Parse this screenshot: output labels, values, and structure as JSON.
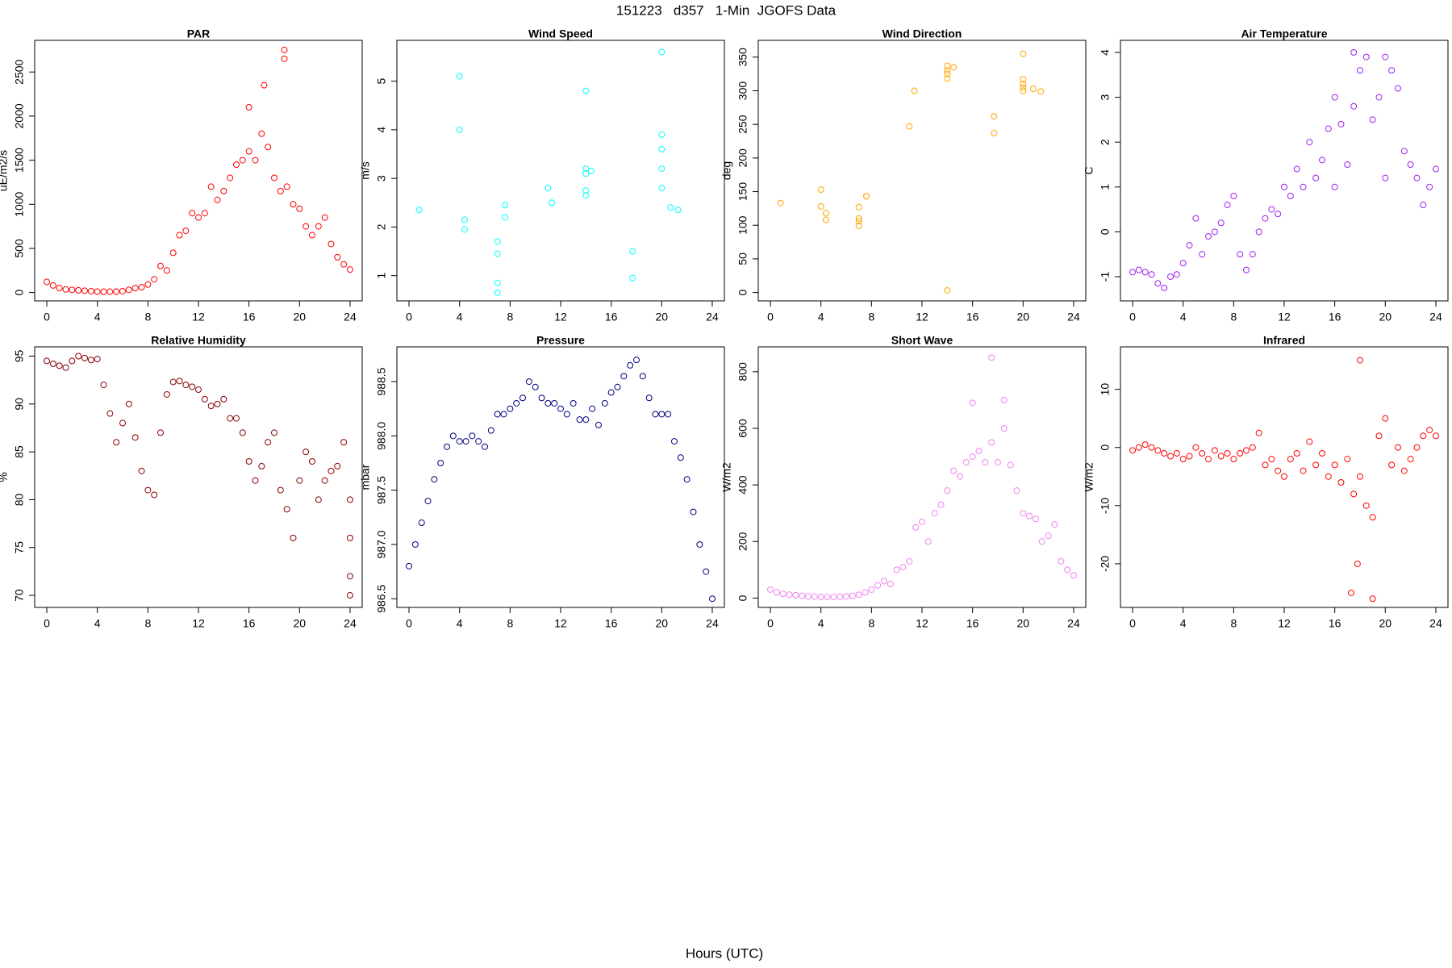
{
  "title": "151223   d357   1-Min  JGOFS Data",
  "x_label": "Hours (UTC)",
  "chart_data": [
    {
      "type": "scatter",
      "title": "PAR",
      "y_label": "uE/m2/s",
      "color": "#ff0000",
      "x": [
        0,
        0.5,
        1,
        1.5,
        2,
        2.5,
        3,
        3.5,
        4,
        4.5,
        5,
        5.5,
        6,
        6.5,
        7,
        7.5,
        8,
        8.5,
        9,
        9.5,
        10,
        10.5,
        11,
        11.5,
        12,
        12.5,
        13,
        13.5,
        14,
        14.5,
        15,
        15.5,
        16,
        16.5,
        17,
        17.5,
        18,
        18.5,
        19,
        19.5,
        20,
        20.5,
        21,
        21.5,
        22,
        22.5,
        23,
        23.5,
        24,
        16,
        17.2,
        18.8,
        18.8
      ],
      "values": [
        120,
        80,
        50,
        35,
        30,
        25,
        20,
        15,
        10,
        10,
        10,
        10,
        15,
        30,
        50,
        60,
        90,
        150,
        300,
        250,
        450,
        650,
        700,
        900,
        850,
        900,
        1200,
        1050,
        1150,
        1300,
        1450,
        1500,
        1600,
        1500,
        1800,
        1650,
        1300,
        1150,
        1200,
        1000,
        950,
        750,
        650,
        750,
        850,
        550,
        400,
        320,
        260,
        2100,
        2350,
        2750,
        2650
      ],
      "xlim": [
        -0.96,
        24.96
      ],
      "xticks": [
        0,
        4,
        8,
        12,
        16,
        20,
        24
      ],
      "ylim": [
        -95,
        2859
      ],
      "yticks": [
        0,
        500,
        1000,
        1500,
        2000,
        2500
      ]
    },
    {
      "type": "scatter",
      "title": "Wind Speed",
      "y_label": "m/s",
      "color": "#00ffff",
      "x": [
        0.8,
        4,
        4,
        4.4,
        4.4,
        7,
        7,
        7,
        7,
        7.6,
        7.6,
        11,
        11.3,
        14,
        14,
        14,
        14,
        14,
        14.4,
        17.7,
        17.7,
        20,
        20,
        20,
        20,
        20,
        20.7,
        21.3
      ],
      "values": [
        2.35,
        5.1,
        4,
        2.15,
        1.95,
        1.7,
        1.45,
        0.85,
        0.65,
        2.45,
        2.2,
        2.8,
        2.5,
        4.8,
        3.2,
        3.1,
        2.75,
        2.65,
        3.15,
        1.5,
        0.95,
        5.6,
        3.9,
        3.6,
        3.2,
        2.8,
        2.4,
        2.35
      ],
      "xlim": [
        -0.96,
        24.96
      ],
      "xticks": [
        0,
        4,
        8,
        12,
        16,
        20,
        24
      ],
      "ylim": [
        0.48,
        5.84
      ],
      "yticks": [
        1,
        2,
        3,
        4,
        5
      ]
    },
    {
      "type": "scatter",
      "title": "Wind Direction",
      "y_label": "deg",
      "color": "#ffa500",
      "x": [
        0.8,
        4,
        4,
        4.4,
        4.4,
        7,
        7,
        7,
        7,
        7.6,
        7.6,
        11,
        11.4,
        14,
        14,
        14,
        14,
        14,
        14.5,
        17.7,
        17.7,
        20,
        20,
        20,
        20,
        20,
        20.8,
        21.4
      ],
      "values": [
        133,
        153,
        128,
        118,
        108,
        127,
        110,
        106,
        99,
        143,
        143,
        247,
        300,
        337,
        330,
        325,
        318,
        3,
        335,
        262,
        237,
        355,
        317,
        310,
        305,
        300,
        303,
        299
      ],
      "xlim": [
        -0.96,
        24.96
      ],
      "xticks": [
        0,
        4,
        8,
        12,
        16,
        20,
        24
      ],
      "ylim": [
        -12.5,
        375
      ],
      "yticks": [
        0,
        50,
        100,
        150,
        200,
        250,
        300,
        350
      ]
    },
    {
      "type": "scatter",
      "title": "Air Temperature",
      "y_label": "C",
      "color": "#a020f0",
      "x": [
        0,
        0.5,
        1,
        1.5,
        2,
        2.5,
        3,
        3.5,
        4,
        4.5,
        5,
        5.5,
        6,
        6.5,
        7,
        7.5,
        8,
        8.5,
        9,
        9.5,
        10,
        10.5,
        11,
        11.5,
        12,
        12.5,
        13,
        13.5,
        14,
        14.5,
        15,
        15.5,
        16,
        16.5,
        17,
        17.5,
        18,
        18.5,
        19,
        19.5,
        20,
        20.5,
        21,
        21.5,
        22,
        22.5,
        23,
        23.5,
        24,
        17.5,
        20,
        16
      ],
      "values": [
        -0.9,
        -0.85,
        -0.9,
        -0.95,
        -1.15,
        -1.25,
        -1.0,
        -0.95,
        -0.7,
        -0.3,
        0.3,
        -0.5,
        -0.1,
        0.0,
        0.2,
        0.6,
        0.8,
        -0.5,
        -0.85,
        -0.5,
        0.0,
        0.3,
        0.5,
        0.4,
        1.0,
        0.8,
        1.4,
        1.0,
        2.0,
        1.2,
        1.6,
        2.3,
        3.0,
        2.4,
        1.5,
        2.8,
        3.6,
        3.9,
        2.5,
        3.0,
        1.2,
        3.6,
        3.2,
        1.8,
        1.5,
        1.2,
        0.6,
        1.0,
        1.4,
        4.0,
        3.9,
        1.0
      ],
      "xlim": [
        -0.96,
        24.96
      ],
      "xticks": [
        0,
        4,
        8,
        12,
        16,
        20,
        24
      ],
      "ylim": [
        -1.54,
        4.27
      ],
      "yticks": [
        -1,
        0,
        1,
        2,
        3,
        4
      ]
    },
    {
      "type": "scatter",
      "title": "Relative Humidity",
      "y_label": "%",
      "color": "#8b0000",
      "x": [
        0,
        0.5,
        1,
        1.5,
        2,
        2.5,
        3,
        3.5,
        4,
        4.5,
        5,
        5.5,
        6,
        6.5,
        7,
        7.5,
        8,
        8.5,
        9,
        9.5,
        10,
        10.5,
        11,
        11.5,
        12,
        12.5,
        13,
        13.5,
        14,
        14.5,
        15,
        15.5,
        16,
        16.5,
        17,
        17.5,
        18,
        18.5,
        19,
        19.5,
        20,
        20.5,
        21,
        21.5,
        22,
        22.5,
        23,
        23.5,
        24,
        24,
        24,
        24
      ],
      "values": [
        94.5,
        94.2,
        94.0,
        93.8,
        94.5,
        95.0,
        94.8,
        94.6,
        94.7,
        92.0,
        89.0,
        86.0,
        88.0,
        90.0,
        86.5,
        83.0,
        81.0,
        80.5,
        87.0,
        91.0,
        92.3,
        92.4,
        92.0,
        91.8,
        91.5,
        90.5,
        89.8,
        90.0,
        90.5,
        88.5,
        88.5,
        87.0,
        84.0,
        82.0,
        83.5,
        86.0,
        87.0,
        81.0,
        79.0,
        76.0,
        82.0,
        85.0,
        84.0,
        80.0,
        82.0,
        83.0,
        83.5,
        86.0,
        80.0,
        76,
        72,
        70
      ],
      "xlim": [
        -0.96,
        24.96
      ],
      "xticks": [
        0,
        4,
        8,
        12,
        16,
        20,
        24
      ],
      "ylim": [
        68.74,
        95.97
      ],
      "yticks": [
        70,
        75,
        80,
        85,
        90,
        95
      ]
    },
    {
      "type": "scatter",
      "title": "Pressure",
      "y_label": "mbar",
      "color": "#000080",
      "x": [
        0,
        0.5,
        1,
        1.5,
        2,
        2.5,
        3,
        3.5,
        4,
        4.5,
        5,
        5.5,
        6,
        6.5,
        7,
        7.5,
        8,
        8.5,
        9,
        9.5,
        10,
        10.5,
        11,
        11.5,
        12,
        12.5,
        13,
        13.5,
        14,
        14.5,
        15,
        15.5,
        16,
        16.5,
        17,
        17.5,
        18,
        18.5,
        19,
        19.5,
        20,
        20.5,
        21,
        21.5,
        22,
        22.5,
        23,
        23.5,
        24
      ],
      "values": [
        986.8,
        987.0,
        987.2,
        987.4,
        987.6,
        987.75,
        987.9,
        988.0,
        987.95,
        987.95,
        988.0,
        987.95,
        987.9,
        988.05,
        988.2,
        988.2,
        988.25,
        988.3,
        988.35,
        988.5,
        988.45,
        988.35,
        988.3,
        988.3,
        988.25,
        988.2,
        988.3,
        988.15,
        988.15,
        988.25,
        988.1,
        988.3,
        988.4,
        988.45,
        988.55,
        988.65,
        988.7,
        988.55,
        988.35,
        988.2,
        988.2,
        988.2,
        987.95,
        987.8,
        987.6,
        987.3,
        987.0,
        986.75,
        986.5
      ],
      "xlim": [
        -0.96,
        24.96
      ],
      "xticks": [
        0,
        4,
        8,
        12,
        16,
        20,
        24
      ],
      "ylim": [
        986.42,
        988.82
      ],
      "yticks": [
        986.5,
        {
          "value": 987,
          "label": "987.0"
        },
        987.5,
        {
          "value": 988,
          "label": "988.0"
        },
        988.5
      ]
    },
    {
      "type": "scatter",
      "title": "Short Wave",
      "y_label": "W/m2",
      "color": "#ee82ee",
      "x": [
        0,
        0.5,
        1,
        1.5,
        2,
        2.5,
        3,
        3.5,
        4,
        4.5,
        5,
        5.5,
        6,
        6.5,
        7,
        7.5,
        8,
        8.5,
        9,
        9.5,
        10,
        10.5,
        11,
        11.5,
        12,
        12.5,
        13,
        13.5,
        14,
        14.5,
        15,
        15.5,
        16,
        16.5,
        17,
        17.5,
        18,
        18.5,
        19,
        19.5,
        20,
        20.5,
        21,
        21.5,
        22,
        22.5,
        23,
        23.5,
        24,
        17.5,
        16,
        18.5
      ],
      "values": [
        30,
        20,
        15,
        12,
        10,
        8,
        6,
        5,
        4,
        4,
        4,
        5,
        6,
        8,
        12,
        20,
        30,
        45,
        60,
        50,
        100,
        110,
        130,
        250,
        270,
        200,
        300,
        330,
        380,
        450,
        430,
        480,
        500,
        520,
        480,
        550,
        480,
        600,
        470,
        380,
        300,
        290,
        280,
        200,
        220,
        260,
        130,
        100,
        80,
        850,
        690,
        700
      ],
      "xlim": [
        -0.96,
        24.96
      ],
      "xticks": [
        0,
        4,
        8,
        12,
        16,
        20,
        24
      ],
      "ylim": [
        -33,
        888
      ],
      "yticks": [
        0,
        200,
        400,
        600,
        800
      ]
    },
    {
      "type": "scatter",
      "title": "Infrared",
      "y_label": "W/m2",
      "color": "#ff0000",
      "x": [
        0,
        0.5,
        1,
        1.5,
        2,
        2.5,
        3,
        3.5,
        4,
        4.5,
        5,
        5.5,
        6,
        6.5,
        7,
        7.5,
        8,
        8.5,
        9,
        9.5,
        10,
        10.5,
        11,
        11.5,
        12,
        12.5,
        13,
        13.5,
        14,
        14.5,
        15,
        15.5,
        16,
        16.5,
        17,
        17.5,
        18,
        18.5,
        19,
        19.5,
        20,
        20.5,
        21,
        21.5,
        22,
        22.5,
        23,
        23.5,
        24,
        18,
        17.3,
        19,
        17.8
      ],
      "values": [
        -0.5,
        0,
        0.5,
        0,
        -0.5,
        -1,
        -1.5,
        -1,
        -2,
        -1.5,
        0,
        -1,
        -2,
        -0.5,
        -1.5,
        -1,
        -2,
        -1,
        -0.5,
        0,
        2.5,
        -3,
        -2,
        -4,
        -5,
        -2,
        -1,
        -4,
        1,
        -3,
        -1,
        -5,
        -3,
        -6,
        -2,
        -8,
        -5,
        -10,
        -12,
        2,
        5,
        -3,
        0,
        -4,
        -2,
        0,
        2,
        3,
        2,
        15,
        -25,
        -26,
        -20
      ],
      "xlim": [
        -0.96,
        24.96
      ],
      "xticks": [
        0,
        4,
        8,
        12,
        16,
        20,
        24
      ],
      "ylim": [
        -27.5,
        17.3
      ],
      "yticks": [
        -20,
        -10,
        0,
        10
      ]
    }
  ]
}
